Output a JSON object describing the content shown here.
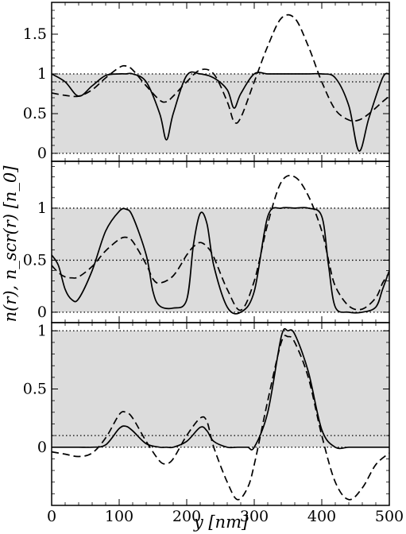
{
  "figure": {
    "xlabel": "y [nm]",
    "ylabel": "n(r), n_scr(r) [n_0]"
  },
  "chart_data": [
    {
      "type": "line",
      "panel": "top",
      "x": [
        0,
        20,
        40,
        60,
        80,
        100,
        110,
        120,
        140,
        160,
        170,
        180,
        200,
        220,
        240,
        260,
        270,
        280,
        300,
        320,
        340,
        360,
        380,
        400,
        420,
        440,
        455,
        470,
        490,
        500
      ],
      "series": [
        {
          "name": "",
          "style": "solid",
          "values": [
            1.0,
            0.9,
            0.72,
            0.85,
            0.98,
            1.0,
            1.0,
            1.0,
            0.9,
            0.5,
            0.17,
            0.5,
            0.98,
            1.0,
            0.95,
            0.8,
            0.57,
            0.75,
            1.0,
            1.0,
            1.0,
            1.0,
            1.0,
            1.0,
            0.95,
            0.6,
            0.03,
            0.45,
            0.95,
            1.0
          ]
        },
        {
          "name": "",
          "style": "dashed",
          "values": [
            0.76,
            0.73,
            0.72,
            0.8,
            0.95,
            1.08,
            1.1,
            1.05,
            0.85,
            0.67,
            0.65,
            0.72,
            0.9,
            1.05,
            1.0,
            0.65,
            0.4,
            0.45,
            0.9,
            1.35,
            1.7,
            1.7,
            1.35,
            0.9,
            0.55,
            0.42,
            0.42,
            0.5,
            0.65,
            0.72
          ]
        }
      ],
      "reference_lines": [
        0,
        0.9,
        1
      ],
      "shaded_band": [
        0,
        1
      ],
      "xlim": [
        0,
        500
      ],
      "ylim": [
        -0.1,
        1.9
      ],
      "yticks": [
        0,
        0.5,
        1,
        1.5
      ],
      "ytick_labels": [
        "0",
        "0.5",
        "1",
        "1.5"
      ]
    },
    {
      "type": "line",
      "panel": "middle",
      "x": [
        0,
        10,
        20,
        30,
        40,
        60,
        80,
        100,
        110,
        120,
        140,
        150,
        160,
        180,
        200,
        210,
        220,
        230,
        240,
        260,
        280,
        300,
        320,
        340,
        360,
        380,
        400,
        410,
        420,
        440,
        460,
        480,
        490,
        500
      ],
      "series": [
        {
          "name": "",
          "style": "solid",
          "values": [
            0.55,
            0.45,
            0.22,
            0.12,
            0.13,
            0.4,
            0.78,
            0.97,
            0.99,
            0.92,
            0.55,
            0.2,
            0.06,
            0.04,
            0.12,
            0.65,
            0.95,
            0.85,
            0.45,
            0.05,
            0.0,
            0.2,
            0.92,
            1.0,
            1.0,
            1.0,
            0.92,
            0.45,
            0.05,
            0.0,
            0.0,
            0.05,
            0.22,
            0.4
          ]
        },
        {
          "name": "",
          "style": "dashed",
          "values": [
            0.45,
            0.38,
            0.34,
            0.33,
            0.34,
            0.44,
            0.59,
            0.7,
            0.72,
            0.68,
            0.46,
            0.32,
            0.28,
            0.35,
            0.55,
            0.63,
            0.67,
            0.63,
            0.53,
            0.22,
            0.02,
            0.3,
            0.85,
            1.25,
            1.3,
            1.12,
            0.78,
            0.5,
            0.25,
            0.06,
            0.03,
            0.14,
            0.28,
            0.38
          ]
        }
      ],
      "reference_lines": [
        0,
        0.5,
        1
      ],
      "shaded_band": [
        0,
        1
      ],
      "xlim": [
        0,
        500
      ],
      "ylim": [
        -0.1,
        1.45
      ],
      "yticks": [
        0,
        0.5,
        1
      ],
      "ytick_labels": [
        "0",
        "0.5",
        "1"
      ]
    },
    {
      "type": "line",
      "panel": "bottom",
      "x": [
        0,
        20,
        40,
        60,
        80,
        100,
        110,
        120,
        140,
        160,
        170,
        180,
        200,
        220,
        230,
        240,
        260,
        275,
        290,
        300,
        320,
        340,
        350,
        360,
        380,
        400,
        420,
        440,
        460,
        480,
        500
      ],
      "series": [
        {
          "name": "",
          "style": "solid",
          "values": [
            0.0,
            0.0,
            0.0,
            0.0,
            0.02,
            0.16,
            0.18,
            0.14,
            0.03,
            0.0,
            0.0,
            0.0,
            0.05,
            0.17,
            0.14,
            0.05,
            0.0,
            0.0,
            0.0,
            0.0,
            0.3,
            0.95,
            1.0,
            0.97,
            0.65,
            0.15,
            0.0,
            0.0,
            0.0,
            0.0,
            0.0
          ]
        },
        {
          "name": "",
          "style": "dashed",
          "values": [
            -0.04,
            -0.06,
            -0.08,
            -0.05,
            0.08,
            0.28,
            0.3,
            0.25,
            0.05,
            -0.12,
            -0.14,
            -0.1,
            0.1,
            0.25,
            0.22,
            0.0,
            -0.3,
            -0.45,
            -0.35,
            -0.15,
            0.4,
            0.9,
            0.95,
            0.9,
            0.6,
            0.1,
            -0.3,
            -0.45,
            -0.35,
            -0.15,
            -0.05
          ]
        }
      ],
      "reference_lines": [
        0,
        0.1,
        1
      ],
      "shaded_band": [
        0,
        1
      ],
      "xlim": [
        0,
        500
      ],
      "ylim": [
        -0.5,
        1.07
      ],
      "yticks": [
        0,
        0.5,
        1
      ],
      "ytick_labels": [
        "0",
        "0.5",
        "1"
      ],
      "xticks": [
        0,
        100,
        200,
        300,
        400,
        500
      ],
      "xtick_labels": [
        "0",
        "100",
        "200",
        "300",
        "400",
        "500"
      ]
    }
  ]
}
